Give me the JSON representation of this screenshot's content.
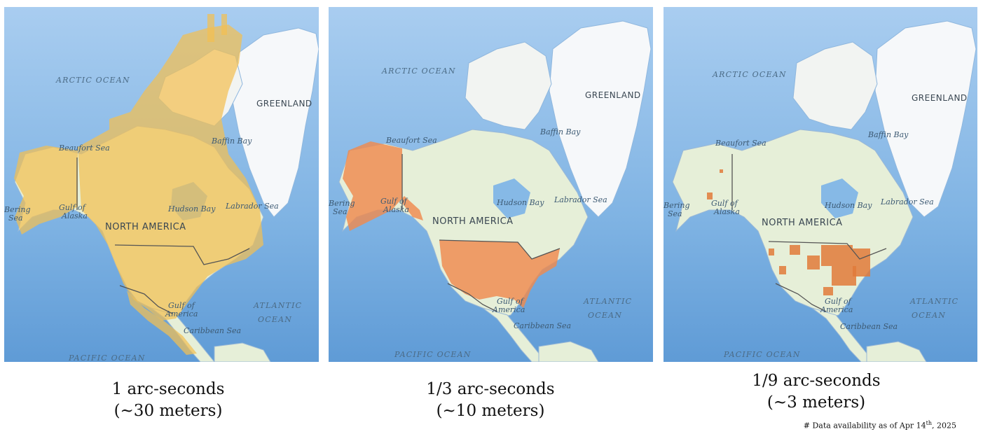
{
  "map_labels": {
    "arctic_ocean": "ARCTIC OCEAN",
    "greenland": "GREENLAND",
    "beaufort_sea": "Beaufort Sea",
    "baffin_bay": "Baffin Bay",
    "bering_sea_1": "Bering",
    "bering_sea_2": "Sea",
    "gulf_of_alaska_1": "Gulf of",
    "gulf_of_alaska_2": "Alaska",
    "hudson_bay": "Hudson Bay",
    "labrador_sea": "Labrador Sea",
    "north_america": "NORTH AMERICA",
    "atlantic_ocean_1": "ATLANTIC",
    "atlantic_ocean_2": "OCEAN",
    "gulf_of_america_1": "Gulf of",
    "gulf_of_america_2": "America",
    "caribbean_sea": "Caribbean Sea",
    "pacific_ocean": "PACIFIC OCEAN"
  },
  "panels": [
    {
      "coverage_color": "#f2bf52",
      "caption_line1": "1 arc-seconds",
      "caption_line2": "(~30 meters)"
    },
    {
      "coverage_color": "#ef8a4e",
      "caption_line1": "1/3 arc-seconds",
      "caption_line2": "(~10 meters)"
    },
    {
      "coverage_color": "#e07a3a",
      "caption_line1": "1/9 arc-seconds",
      "caption_line2": "(~3 meters)"
    }
  ],
  "footnote": {
    "prefix": "# Data availability as of Apr 14",
    "superscript": "th",
    "suffix": ", 2025"
  },
  "colors": {
    "ocean": "#7fb3e3",
    "land": "#e6efd8",
    "ice": "#f6f8fa",
    "border": "#555555"
  }
}
